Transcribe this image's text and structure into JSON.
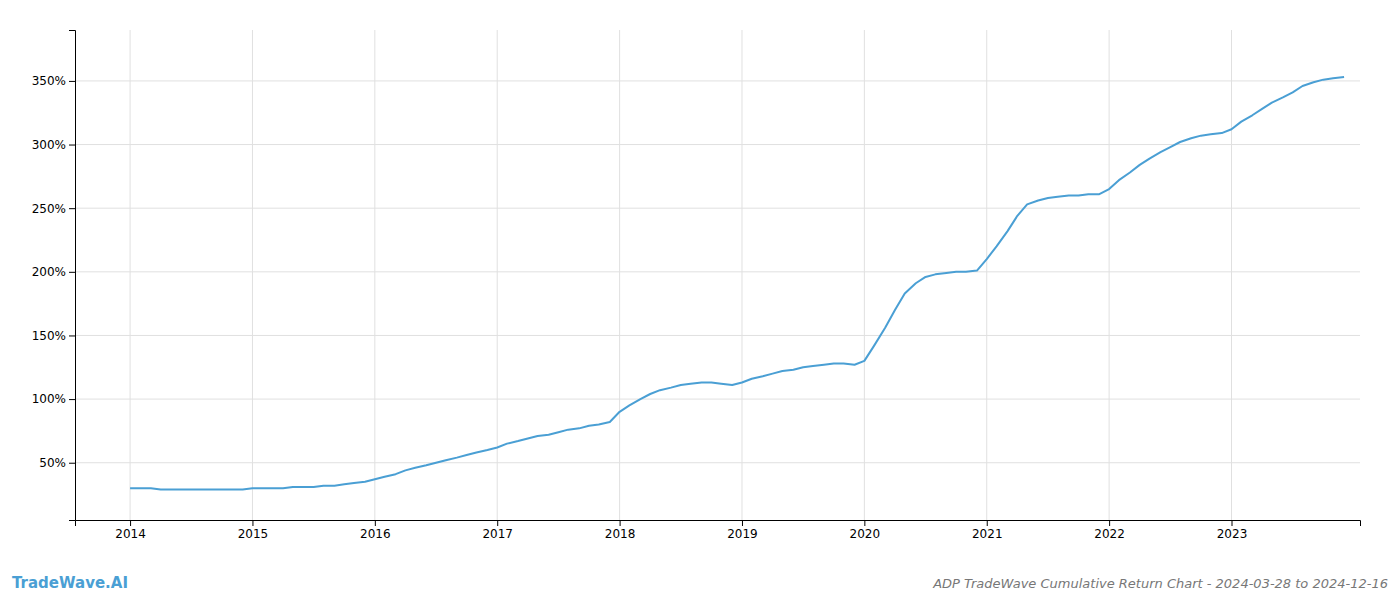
{
  "chart_data": {
    "type": "line",
    "title": "ADP TradeWave Cumulative Return Chart - 2024-03-28 to 2024-12-16",
    "annotations": [
      "TradeWave.AI"
    ],
    "color": "#4a9fd4",
    "grid": true,
    "xlim": [
      2013.55,
      2024.05
    ],
    "xticks": [
      2014,
      2015,
      2016,
      2017,
      2018,
      2019,
      2020,
      2021,
      2022,
      2023
    ],
    "ylim": [
      5,
      390
    ],
    "yticks": [
      {
        "value": 50,
        "label": "50%"
      },
      {
        "value": 100,
        "label": "100%"
      },
      {
        "value": 150,
        "label": "150%"
      },
      {
        "value": 200,
        "label": "200%"
      },
      {
        "value": 250,
        "label": "250%"
      },
      {
        "value": 300,
        "label": "300%"
      },
      {
        "value": 350,
        "label": "350%"
      }
    ],
    "x": [
      2014.0,
      2014.08,
      2014.17,
      2014.25,
      2014.33,
      2014.42,
      2014.5,
      2014.58,
      2014.67,
      2014.75,
      2014.83,
      2014.92,
      2015.0,
      2015.08,
      2015.17,
      2015.25,
      2015.33,
      2015.42,
      2015.5,
      2015.58,
      2015.67,
      2015.75,
      2015.83,
      2015.92,
      2016.0,
      2016.08,
      2016.17,
      2016.25,
      2016.33,
      2016.42,
      2016.5,
      2016.58,
      2016.67,
      2016.75,
      2016.83,
      2016.92,
      2017.0,
      2017.08,
      2017.17,
      2017.25,
      2017.33,
      2017.42,
      2017.5,
      2017.58,
      2017.67,
      2017.75,
      2017.83,
      2017.92,
      2018.0,
      2018.08,
      2018.17,
      2018.25,
      2018.33,
      2018.42,
      2018.5,
      2018.58,
      2018.67,
      2018.75,
      2018.83,
      2018.92,
      2019.0,
      2019.08,
      2019.17,
      2019.25,
      2019.33,
      2019.42,
      2019.5,
      2019.58,
      2019.67,
      2019.75,
      2019.83,
      2019.92,
      2020.0,
      2020.08,
      2020.17,
      2020.25,
      2020.33,
      2020.42,
      2020.5,
      2020.58,
      2020.67,
      2020.75,
      2020.83,
      2020.92,
      2021.0,
      2021.08,
      2021.17,
      2021.25,
      2021.33,
      2021.42,
      2021.5,
      2021.58,
      2021.67,
      2021.75,
      2021.83,
      2021.92,
      2022.0,
      2022.08,
      2022.17,
      2022.25,
      2022.33,
      2022.42,
      2022.5,
      2022.58,
      2022.67,
      2022.75,
      2022.83,
      2022.92,
      2023.0,
      2023.08,
      2023.17,
      2023.25,
      2023.33,
      2023.42,
      2023.5,
      2023.58,
      2023.67,
      2023.75,
      2023.83,
      2023.92
    ],
    "values": [
      30,
      30,
      30,
      29,
      29,
      29,
      29,
      29,
      29,
      29,
      29,
      29,
      30,
      30,
      30,
      30,
      31,
      31,
      31,
      32,
      32,
      33,
      34,
      35,
      37,
      39,
      41,
      44,
      46,
      48,
      50,
      52,
      54,
      56,
      58,
      60,
      62,
      65,
      67,
      69,
      71,
      72,
      74,
      76,
      77,
      79,
      80,
      82,
      90,
      95,
      100,
      104,
      107,
      109,
      111,
      112,
      113,
      113,
      112,
      111,
      113,
      116,
      118,
      120,
      122,
      123,
      125,
      126,
      127,
      128,
      128,
      127,
      130,
      142,
      156,
      170,
      183,
      191,
      196,
      198,
      199,
      200,
      200,
      201,
      210,
      220,
      232,
      244,
      253,
      256,
      258,
      259,
      260,
      260,
      261,
      261,
      265,
      272,
      278,
      284,
      289,
      294,
      298,
      302,
      305,
      307,
      308,
      309,
      312,
      318,
      323,
      328,
      333,
      337,
      341,
      346,
      349,
      351,
      352,
      353
    ]
  }
}
